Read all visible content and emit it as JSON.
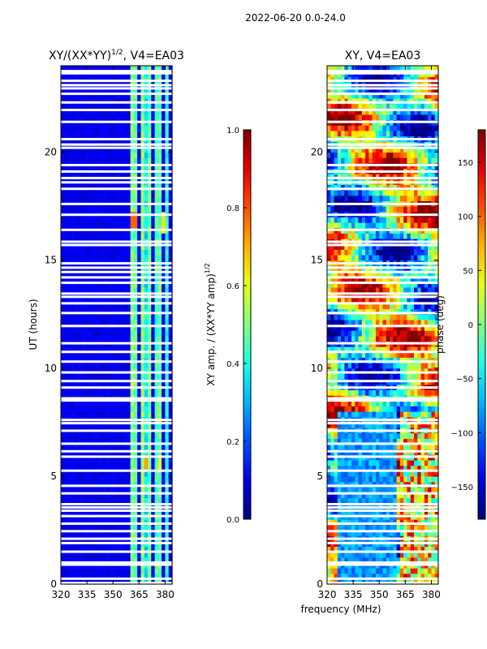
{
  "suptitle": "2022-06-20 0.0-24.0",
  "xlabel": "frequency (MHz)",
  "chart_data": [
    {
      "type": "heatmap",
      "title_main": "XY/(XX*YY)",
      "title_sup": "1/2",
      "title_tail": ", V4=EA03",
      "xlabel": "",
      "ylabel": "UT (hours)",
      "xlim": [
        320,
        384
      ],
      "ylim": [
        0,
        24
      ],
      "xticks": [
        320,
        335,
        350,
        365,
        380
      ],
      "yticks": [
        0,
        5,
        10,
        15,
        20
      ],
      "colorbar": {
        "label_main": "XY amp. / (XX*YY amp)",
        "label_sup": "1/2",
        "range": [
          0.0,
          1.0
        ],
        "ticks": [
          "0.0",
          "0.2",
          "0.4",
          "0.6",
          "0.8",
          "1.0"
        ],
        "colormap": "jet"
      },
      "baseline": 0.08,
      "bright_bands": [
        {
          "from": 360,
          "to": 362,
          "level": 0.45
        },
        {
          "from": 363,
          "to": 365,
          "level": 0.4
        },
        {
          "from": 366,
          "to": 368,
          "level": 0.45
        },
        {
          "from": 369,
          "to": 370,
          "level": 0.3
        },
        {
          "from": 371,
          "to": 373,
          "level": 0.42
        },
        {
          "from": 374,
          "to": 376,
          "level": 0.38
        },
        {
          "from": 377,
          "to": 379,
          "level": 0.42
        },
        {
          "from": 380,
          "to": 382,
          "level": 0.35
        }
      ],
      "hot_spots": [
        {
          "freq": 361,
          "ut": 16.7,
          "level": 0.78
        },
        {
          "freq": 368,
          "ut": 5.4,
          "level": 0.72
        },
        {
          "freq": 378,
          "ut": 16.6,
          "level": 0.65
        },
        {
          "freq": 376,
          "ut": 5.5,
          "level": 0.6
        }
      ]
    },
    {
      "type": "heatmap",
      "title_main": "XY",
      "title_sup": "",
      "title_tail": ", V4=EA03",
      "xlabel": "",
      "ylabel": "",
      "xlim": [
        320,
        384
      ],
      "ylim": [
        0,
        24
      ],
      "xticks": [
        320,
        335,
        350,
        365,
        380
      ],
      "yticks": [
        0,
        5,
        10,
        15,
        20
      ],
      "colorbar": {
        "label_main": "phase (deg)",
        "label_sup": "",
        "range": [
          -180,
          180
        ],
        "ticks": [
          "−150",
          "−100",
          "−50",
          "0",
          "50",
          "100",
          "150"
        ],
        "tick_values": [
          -150,
          -100,
          -50,
          0,
          50,
          100,
          150
        ],
        "colormap": "jet"
      }
    }
  ],
  "flagged_ut": [
    0.05,
    0.25,
    0.9,
    1.0,
    1.5,
    1.9,
    2.1,
    2.45,
    2.8,
    3.15,
    3.4,
    3.55,
    3.7,
    4.2,
    4.55,
    5.25,
    5.9,
    6.15,
    6.5,
    7.1,
    7.45,
    7.6,
    8.5,
    8.6,
    9.1,
    9.4,
    9.8,
    10.3,
    10.75,
    11.15,
    11.95,
    12.55,
    13.0,
    13.3,
    13.45,
    13.95,
    14.2,
    14.45,
    14.65,
    14.85,
    15.7,
    15.85,
    16.4,
    17.1,
    17.6,
    18.3,
    18.6,
    18.8,
    19.1,
    19.4,
    20.2,
    20.35,
    20.6,
    21.4,
    21.95,
    22.3,
    22.7,
    22.95,
    23.1,
    23.3,
    23.65,
    23.75
  ]
}
